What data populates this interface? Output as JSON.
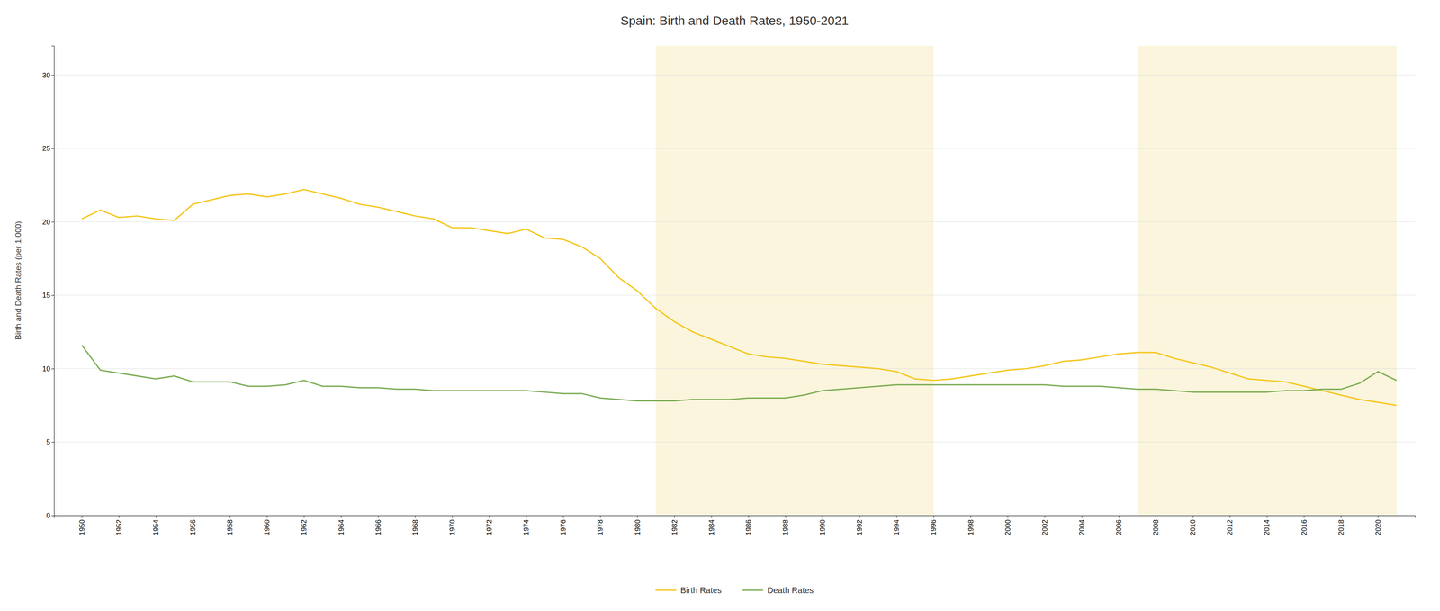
{
  "chart_data": {
    "type": "line",
    "title": "Spain: Birth and Death Rates, 1950-2021",
    "y_label": "Birth and Death Rates (per 1,000)",
    "x": [
      1950,
      1951,
      1952,
      1953,
      1954,
      1955,
      1956,
      1957,
      1958,
      1959,
      1960,
      1961,
      1962,
      1963,
      1964,
      1965,
      1966,
      1967,
      1968,
      1969,
      1970,
      1971,
      1972,
      1973,
      1974,
      1975,
      1976,
      1977,
      1978,
      1979,
      1980,
      1981,
      1982,
      1983,
      1984,
      1985,
      1986,
      1987,
      1988,
      1989,
      1990,
      1991,
      1992,
      1993,
      1994,
      1995,
      1996,
      1997,
      1998,
      1999,
      2000,
      2001,
      2002,
      2003,
      2004,
      2005,
      2006,
      2007,
      2008,
      2009,
      2010,
      2011,
      2012,
      2013,
      2014,
      2015,
      2016,
      2017,
      2018,
      2019,
      2020,
      2021
    ],
    "series": [
      {
        "name": "Birth Rates",
        "color": "#f5c518",
        "values": [
          20.2,
          20.8,
          20.3,
          20.4,
          20.2,
          20.1,
          21.2,
          21.5,
          21.8,
          21.9,
          21.7,
          21.9,
          22.2,
          21.9,
          21.6,
          21.2,
          21.0,
          20.7,
          20.4,
          20.2,
          19.6,
          19.6,
          19.4,
          19.2,
          19.5,
          18.9,
          18.8,
          18.3,
          17.5,
          16.2,
          15.3,
          14.1,
          13.2,
          12.5,
          12.0,
          11.5,
          11.0,
          10.8,
          10.7,
          10.5,
          10.3,
          10.2,
          10.1,
          10.0,
          9.8,
          9.3,
          9.2,
          9.3,
          9.5,
          9.7,
          9.9,
          10.0,
          10.2,
          10.5,
          10.6,
          10.8,
          11.0,
          11.1,
          11.1,
          10.7,
          10.4,
          10.1,
          9.7,
          9.3,
          9.2,
          9.1,
          8.8,
          8.5,
          8.2,
          7.9,
          7.7,
          7.5
        ]
      },
      {
        "name": "Death Rates",
        "color": "#7aab52",
        "values": [
          11.6,
          9.9,
          9.7,
          9.5,
          9.3,
          9.5,
          9.1,
          9.1,
          9.1,
          8.8,
          8.8,
          8.9,
          9.2,
          8.8,
          8.8,
          8.7,
          8.7,
          8.6,
          8.6,
          8.5,
          8.5,
          8.5,
          8.5,
          8.5,
          8.5,
          8.4,
          8.3,
          8.3,
          8.0,
          7.9,
          7.8,
          7.8,
          7.8,
          7.9,
          7.9,
          7.9,
          8.0,
          8.0,
          8.0,
          8.2,
          8.5,
          8.6,
          8.7,
          8.8,
          8.9,
          8.9,
          8.9,
          8.9,
          8.9,
          8.9,
          8.9,
          8.9,
          8.9,
          8.8,
          8.8,
          8.8,
          8.7,
          8.6,
          8.6,
          8.5,
          8.4,
          8.4,
          8.4,
          8.4,
          8.4,
          8.5,
          8.5,
          8.6,
          8.6,
          9.0,
          9.8,
          9.2
        ]
      }
    ],
    "bands": [
      {
        "from": 1981,
        "to": 1996,
        "color": "#faf5dc"
      },
      {
        "from": 2007,
        "to": 2021,
        "color": "#faf5dc"
      }
    ],
    "xlim": [
      1948.5,
      2022
    ],
    "xticks": [
      1950,
      1952,
      1954,
      1956,
      1958,
      1960,
      1962,
      1964,
      1966,
      1968,
      1970,
      1972,
      1974,
      1976,
      1978,
      1980,
      1982,
      1984,
      1986,
      1988,
      1990,
      1992,
      1994,
      1996,
      1998,
      2000,
      2002,
      2004,
      2006,
      2008,
      2010,
      2012,
      2014,
      2016,
      2018,
      2020
    ],
    "ylim": [
      0,
      32
    ],
    "yticks": [
      0,
      5,
      10,
      15,
      20,
      25,
      30
    ],
    "grid": true,
    "legend": "bottom"
  }
}
